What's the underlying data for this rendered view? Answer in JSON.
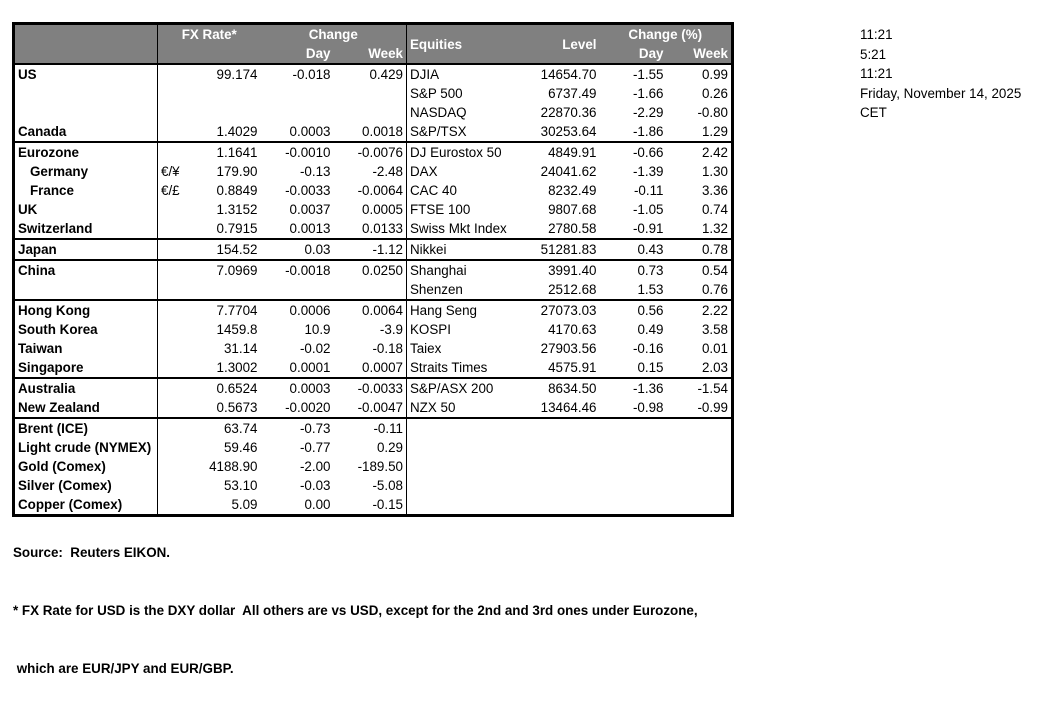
{
  "table": {
    "header": {
      "fx_rate": "FX Rate*",
      "fx_change": "Change",
      "fx_day": "Day",
      "fx_week": "Week",
      "equities": "Equities",
      "level": "Level",
      "eq_change": "Change (%)",
      "eq_day": "Day",
      "eq_week": "Week"
    },
    "sections": [
      {
        "rows": [
          {
            "label": "US",
            "pair": "",
            "rate": "99.174",
            "day": "-0.018",
            "week": "0.429",
            "eq": "DJIA",
            "level": "14654.70",
            "eq_day": "-1.55",
            "eq_week": "0.99"
          },
          {
            "label": "",
            "pair": "",
            "rate": "",
            "day": "",
            "week": "",
            "eq": "S&P 500",
            "level": "6737.49",
            "eq_day": "-1.66",
            "eq_week": "0.26"
          },
          {
            "label": "",
            "pair": "",
            "rate": "",
            "day": "",
            "week": "",
            "eq": "NASDAQ",
            "level": "22870.36",
            "eq_day": "-2.29",
            "eq_week": "-0.80"
          },
          {
            "label": "Canada",
            "pair": "",
            "rate": "1.4029",
            "day": "0.0003",
            "week": "0.0018",
            "eq": "S&P/TSX",
            "level": "30253.64",
            "eq_day": "-1.86",
            "eq_week": "1.29"
          }
        ]
      },
      {
        "rows": [
          {
            "label": "Eurozone",
            "pair": "",
            "rate": "1.1641",
            "day": "-0.0010",
            "week": "-0.0076",
            "eq": "DJ Eurostox 50",
            "level": "4849.91",
            "eq_day": "-0.66",
            "eq_week": "2.42"
          },
          {
            "label": "Germany",
            "indent": true,
            "pair": "€/¥",
            "rate": "179.90",
            "day": "-0.13",
            "week": "-2.48",
            "eq": "DAX",
            "level": "24041.62",
            "eq_day": "-1.39",
            "eq_week": "1.30"
          },
          {
            "label": "France",
            "indent": true,
            "pair": "€/£",
            "rate": "0.8849",
            "day": "-0.0033",
            "week": "-0.0064",
            "eq": "CAC 40",
            "level": "8232.49",
            "eq_day": "-0.11",
            "eq_week": "3.36"
          },
          {
            "label": "UK",
            "pair": "",
            "rate": "1.3152",
            "day": "0.0037",
            "week": "0.0005",
            "eq": "FTSE 100",
            "level": "9807.68",
            "eq_day": "-1.05",
            "eq_week": "0.74"
          },
          {
            "label": "Switzerland",
            "pair": "",
            "rate": "0.7915",
            "day": "0.0013",
            "week": "0.0133",
            "eq": "Swiss Mkt Index",
            "level": "2780.58",
            "eq_day": "-0.91",
            "eq_week": "1.32"
          }
        ]
      },
      {
        "rows": [
          {
            "label": "Japan",
            "pair": "",
            "rate": "154.52",
            "day": "0.03",
            "week": "-1.12",
            "eq": "Nikkei",
            "level": "51281.83",
            "eq_day": "0.43",
            "eq_week": "0.78"
          }
        ]
      },
      {
        "rows": [
          {
            "label": "China",
            "pair": "",
            "rate": "7.0969",
            "day": "-0.0018",
            "week": "0.0250",
            "eq": "Shanghai",
            "level": "3991.40",
            "eq_day": "0.73",
            "eq_week": "0.54"
          },
          {
            "label": "",
            "pair": "",
            "rate": "",
            "day": "",
            "week": "",
            "eq": "Shenzen",
            "level": "2512.68",
            "eq_day": "1.53",
            "eq_week": "0.76"
          }
        ]
      },
      {
        "rows": [
          {
            "label": "Hong Kong",
            "pair": "",
            "rate": "7.7704",
            "day": "0.0006",
            "week": "0.0064",
            "eq": "Hang Seng",
            "level": "27073.03",
            "eq_day": "0.56",
            "eq_week": "2.22"
          },
          {
            "label": "South Korea",
            "pair": "",
            "rate": "1459.8",
            "day": "10.9",
            "week": "-3.9",
            "eq": "KOSPI",
            "level": "4170.63",
            "eq_day": "0.49",
            "eq_week": "3.58"
          },
          {
            "label": "Taiwan",
            "pair": "",
            "rate": "31.14",
            "day": "-0.02",
            "week": "-0.18",
            "eq": "Taiex",
            "level": "27903.56",
            "eq_day": "-0.16",
            "eq_week": "0.01"
          },
          {
            "label": "Singapore",
            "pair": "",
            "rate": "1.3002",
            "day": "0.0001",
            "week": "0.0007",
            "eq": "Straits Times",
            "level": "4575.91",
            "eq_day": "0.15",
            "eq_week": "2.03"
          }
        ]
      },
      {
        "rows": [
          {
            "label": "Australia",
            "pair": "",
            "rate": "0.6524",
            "day": "0.0003",
            "week": "-0.0033",
            "eq": "S&P/ASX  200",
            "level": "8634.50",
            "eq_day": "-1.36",
            "eq_week": "-1.54"
          },
          {
            "label": "New Zealand",
            "pair": "",
            "rate": "0.5673",
            "day": "-0.0020",
            "week": "-0.0047",
            "eq": "NZX 50",
            "level": "13464.46",
            "eq_day": "-0.98",
            "eq_week": "-0.99"
          }
        ]
      },
      {
        "rows": [
          {
            "label": "Brent (ICE)",
            "pair": "",
            "rate": "63.74",
            "day": "-0.73",
            "week": "-0.11",
            "eq": "",
            "level": "",
            "eq_day": "",
            "eq_week": ""
          },
          {
            "label": "Light crude (NYMEX)",
            "pair": "",
            "rate": "59.46",
            "day": "-0.77",
            "week": "0.29",
            "eq": "",
            "level": "",
            "eq_day": "",
            "eq_week": ""
          },
          {
            "label": "Gold (Comex)",
            "pair": "",
            "rate": "4188.90",
            "day": "-2.00",
            "week": "-189.50",
            "eq": "",
            "level": "",
            "eq_day": "",
            "eq_week": ""
          },
          {
            "label": "Silver (Comex)",
            "pair": "",
            "rate": "53.10",
            "day": "-0.03",
            "week": "-5.08",
            "eq": "",
            "level": "",
            "eq_day": "",
            "eq_week": ""
          },
          {
            "label": "Copper (Comex)",
            "pair": "",
            "rate": "5.09",
            "day": "0.00",
            "week": "-0.15",
            "eq": "",
            "level": "",
            "eq_day": "",
            "eq_week": ""
          }
        ]
      }
    ]
  },
  "info": {
    "lines": [
      "11:21",
      "5:21",
      "11:21",
      "Friday, November 14, 2025",
      "CET"
    ]
  },
  "footer": {
    "source": "Source:  Reuters EIKON.",
    "note1": "* FX Rate for USD is the DXY dollar  All others are vs USD, except for the 2nd and 3rd ones under Eurozone,",
    "note2": " which are EUR/JPY and EUR/GBP."
  },
  "colors": {
    "header_bg": "#808080",
    "header_text": "#ffffff",
    "border": "#000000",
    "background": "#ffffff",
    "text": "#000000"
  }
}
